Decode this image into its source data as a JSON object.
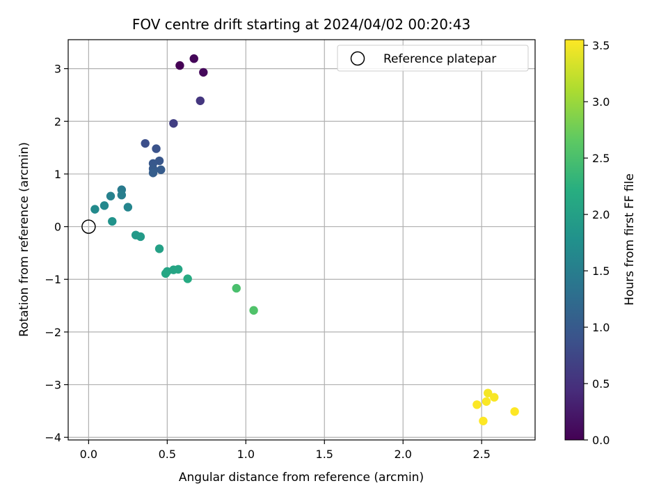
{
  "chart_data": {
    "type": "scatter",
    "title": "FOV centre drift starting at 2024/04/02 00:20:43",
    "xlabel": "Angular distance from reference (arcmin)",
    "ylabel": "Rotation from reference (arcmin)",
    "xlim": [
      -0.13,
      2.84
    ],
    "ylim": [
      -4.05,
      3.55
    ],
    "xticks": [
      0.0,
      0.5,
      1.0,
      1.5,
      2.0,
      2.5
    ],
    "xtick_labels": [
      "0.0",
      "0.5",
      "1.0",
      "1.5",
      "2.0",
      "2.5"
    ],
    "yticks": [
      -4,
      -3,
      -2,
      -1,
      0,
      1,
      2,
      3
    ],
    "ytick_labels": [
      "−4",
      "−3",
      "−2",
      "−1",
      "0",
      "1",
      "2",
      "3"
    ],
    "grid": true,
    "legend": {
      "position": "top-right",
      "entries": [
        "Reference platepar"
      ]
    },
    "reference_point": {
      "x": 0.0,
      "y": 0.0,
      "label": "Reference platepar"
    },
    "colorbar": {
      "label": "Hours from first FF file",
      "colormap": "viridis",
      "range": [
        0.0,
        3.55
      ],
      "ticks": [
        0.0,
        0.5,
        1.0,
        1.5,
        2.0,
        2.5,
        3.0,
        3.5
      ],
      "tick_labels": [
        "0.0",
        "0.5",
        "1.0",
        "1.5",
        "2.0",
        "2.5",
        "3.0",
        "3.5"
      ]
    },
    "points": [
      {
        "x": 0.58,
        "y": 3.06,
        "hours": 0.0
      },
      {
        "x": 0.67,
        "y": 3.19,
        "hours": 0.05
      },
      {
        "x": 0.73,
        "y": 2.93,
        "hours": 0.08
      },
      {
        "x": 0.71,
        "y": 2.39,
        "hours": 0.55
      },
      {
        "x": 0.54,
        "y": 1.96,
        "hours": 0.65
      },
      {
        "x": 0.36,
        "y": 1.58,
        "hours": 0.85
      },
      {
        "x": 0.43,
        "y": 1.48,
        "hours": 0.9
      },
      {
        "x": 0.45,
        "y": 1.25,
        "hours": 0.95
      },
      {
        "x": 0.41,
        "y": 1.2,
        "hours": 0.97
      },
      {
        "x": 0.41,
        "y": 1.1,
        "hours": 1.0
      },
      {
        "x": 0.46,
        "y": 1.08,
        "hours": 1.02
      },
      {
        "x": 0.41,
        "y": 1.02,
        "hours": 1.05
      },
      {
        "x": 0.21,
        "y": 0.7,
        "hours": 1.45
      },
      {
        "x": 0.21,
        "y": 0.6,
        "hours": 1.5
      },
      {
        "x": 0.14,
        "y": 0.58,
        "hours": 1.55
      },
      {
        "x": 0.25,
        "y": 0.37,
        "hours": 1.6
      },
      {
        "x": 0.1,
        "y": 0.4,
        "hours": 1.65
      },
      {
        "x": 0.04,
        "y": 0.33,
        "hours": 1.68
      },
      {
        "x": 0.15,
        "y": 0.1,
        "hours": 1.8
      },
      {
        "x": 0.3,
        "y": -0.16,
        "hours": 1.9
      },
      {
        "x": 0.33,
        "y": -0.19,
        "hours": 1.92
      },
      {
        "x": 0.45,
        "y": -0.42,
        "hours": 2.0
      },
      {
        "x": 0.5,
        "y": -0.85,
        "hours": 2.05
      },
      {
        "x": 0.54,
        "y": -0.82,
        "hours": 2.07
      },
      {
        "x": 0.57,
        "y": -0.81,
        "hours": 2.08
      },
      {
        "x": 0.49,
        "y": -0.89,
        "hours": 2.1
      },
      {
        "x": 0.63,
        "y": -0.99,
        "hours": 2.15
      },
      {
        "x": 0.94,
        "y": -1.17,
        "hours": 2.5
      },
      {
        "x": 1.05,
        "y": -1.59,
        "hours": 2.55
      },
      {
        "x": 2.54,
        "y": -3.16,
        "hours": 3.5
      },
      {
        "x": 2.58,
        "y": -3.24,
        "hours": 3.52
      },
      {
        "x": 2.53,
        "y": -3.32,
        "hours": 3.53
      },
      {
        "x": 2.47,
        "y": -3.38,
        "hours": 3.54
      },
      {
        "x": 2.71,
        "y": -3.51,
        "hours": 3.55
      },
      {
        "x": 2.51,
        "y": -3.69,
        "hours": 3.55
      }
    ]
  }
}
